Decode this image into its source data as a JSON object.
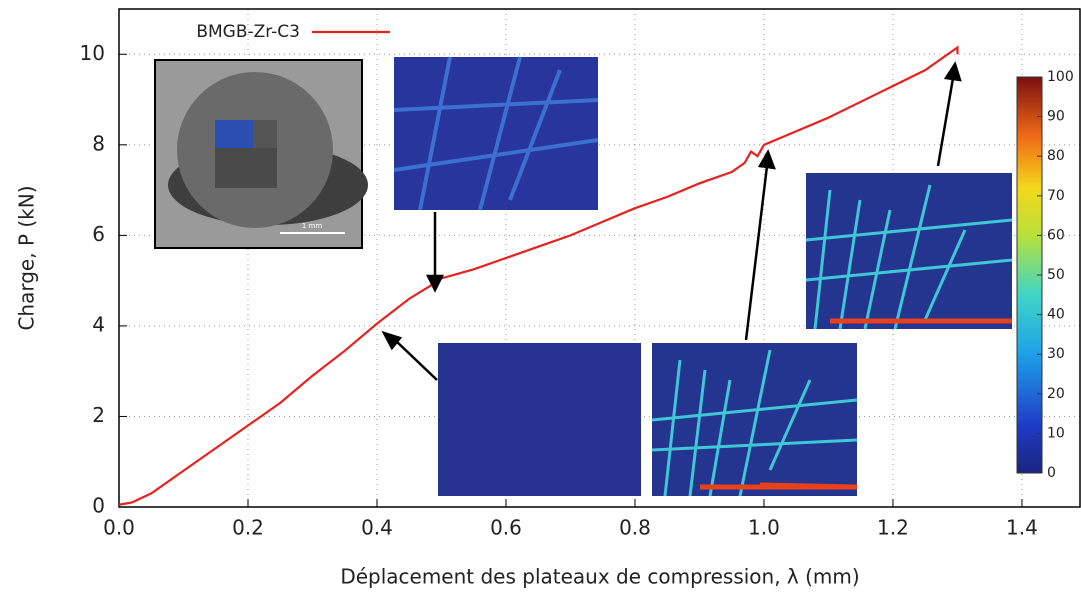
{
  "chart_data": {
    "type": "line",
    "xlabel": "Déplacement des plateaux de compression, λ (mm)",
    "ylabel": "Charge, P (kN)",
    "xlim": [
      0,
      1.49
    ],
    "ylim": [
      0,
      11
    ],
    "xticks": [
      {
        "value": 0,
        "label": "0.0"
      },
      0.2,
      0.4,
      0.6,
      0.8,
      {
        "value": 1,
        "label": "1.0"
      },
      1.2,
      1.4
    ],
    "yticks": [
      0,
      2,
      4,
      6,
      8,
      10
    ],
    "grid": true,
    "legend": "upper left",
    "x": [
      0,
      0.02,
      0.05,
      0.1,
      0.2,
      0.25,
      0.3,
      0.35,
      0.4,
      0.45,
      0.49,
      0.5,
      0.55,
      0.6,
      0.65,
      0.7,
      0.75,
      0.8,
      0.85,
      0.9,
      0.95,
      0.97,
      0.98,
      0.99,
      1.0,
      1.05,
      1.1,
      1.15,
      1.2,
      1.25,
      1.28,
      1.3,
      1.3
    ],
    "series": [
      {
        "name": "BMGB-Zr-C3",
        "color": "#e8211e",
        "values": [
          0.05,
          0.1,
          0.3,
          0.8,
          1.8,
          2.3,
          2.9,
          3.45,
          4.05,
          4.6,
          4.95,
          5.05,
          5.25,
          5.5,
          5.75,
          6.0,
          6.3,
          6.6,
          6.85,
          7.15,
          7.4,
          7.6,
          7.85,
          7.75,
          8.0,
          8.3,
          8.6,
          8.95,
          9.3,
          9.65,
          9.95,
          10.15,
          10.0
        ]
      }
    ],
    "colorbar": {
      "lim": [
        0,
        100
      ],
      "ticks": [
        0,
        10,
        20,
        30,
        40,
        50,
        60,
        70,
        80,
        90,
        100
      ]
    },
    "scale_bar_label": "1 mm"
  }
}
